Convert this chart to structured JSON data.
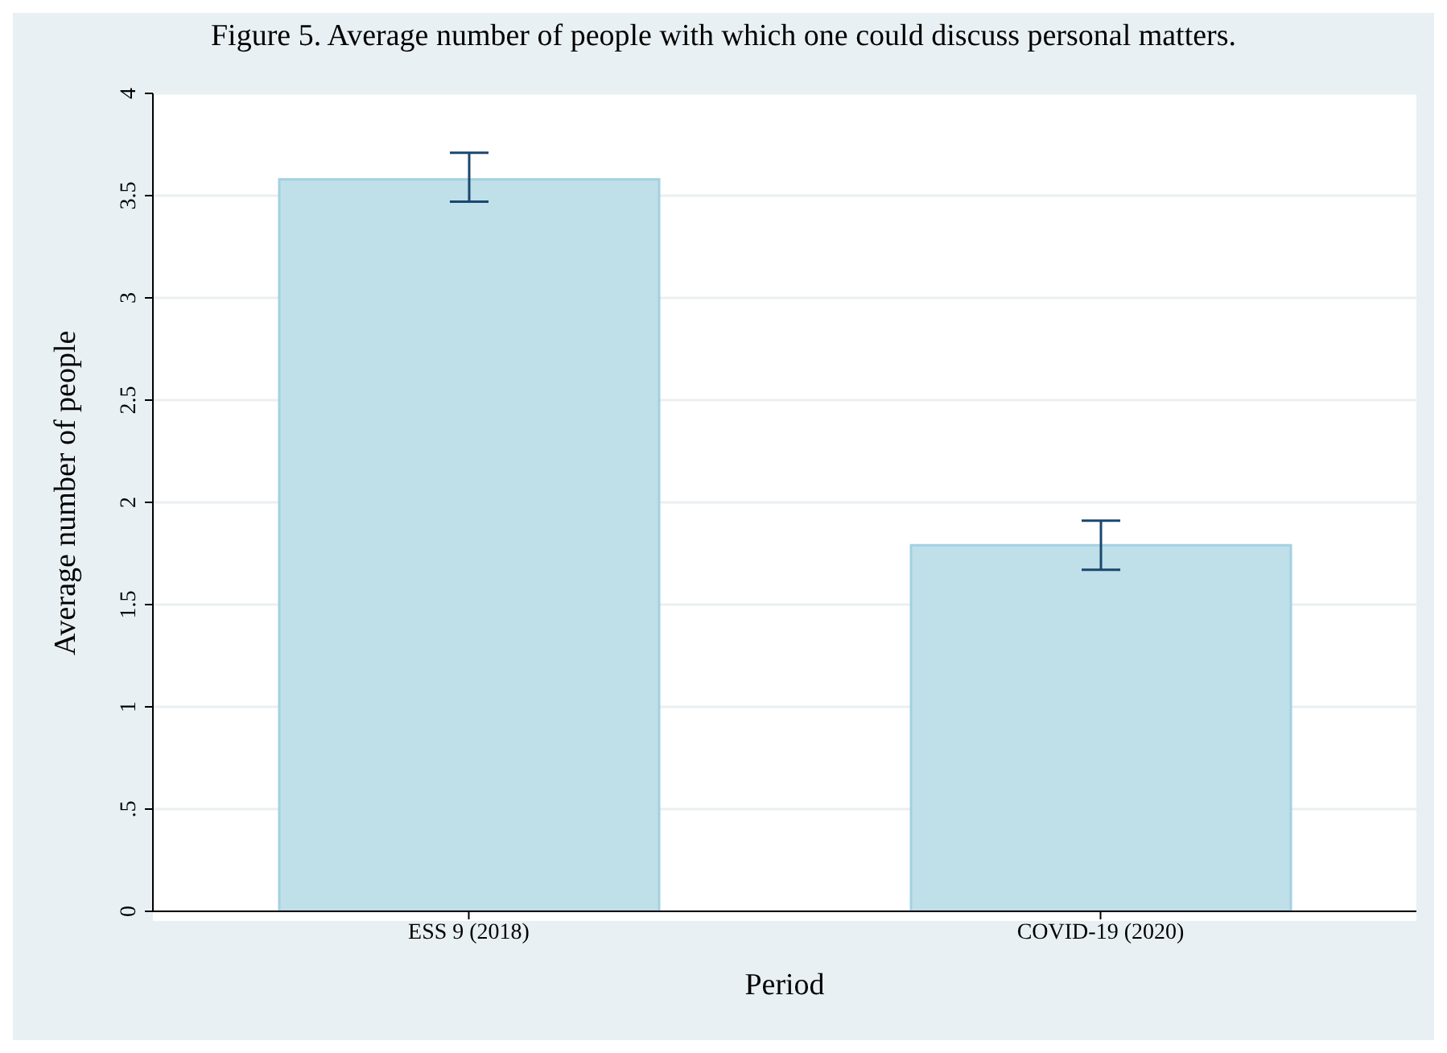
{
  "chart_data": {
    "type": "bar",
    "title": "Figure 5. Average number of people with which one could discuss personal matters.",
    "xlabel": "Period",
    "ylabel": "Average number of people",
    "categories": [
      "ESS 9 (2018)",
      "COVID-19 (2020)"
    ],
    "values": [
      3.58,
      1.79
    ],
    "errors": [
      [
        3.47,
        3.71
      ],
      [
        1.67,
        1.91
      ]
    ],
    "color": "#bfdfe9",
    "ylim": [
      0,
      4
    ],
    "yticks": [
      0,
      {
        "value": 0.5,
        "label": ".5"
      },
      1,
      {
        "value": 1.5,
        "label": "1.5"
      },
      2,
      {
        "value": 2.5,
        "label": "2.5"
      },
      3,
      {
        "value": 3.5,
        "label": "3.5"
      },
      4
    ],
    "grid": "y",
    "legend": false
  }
}
